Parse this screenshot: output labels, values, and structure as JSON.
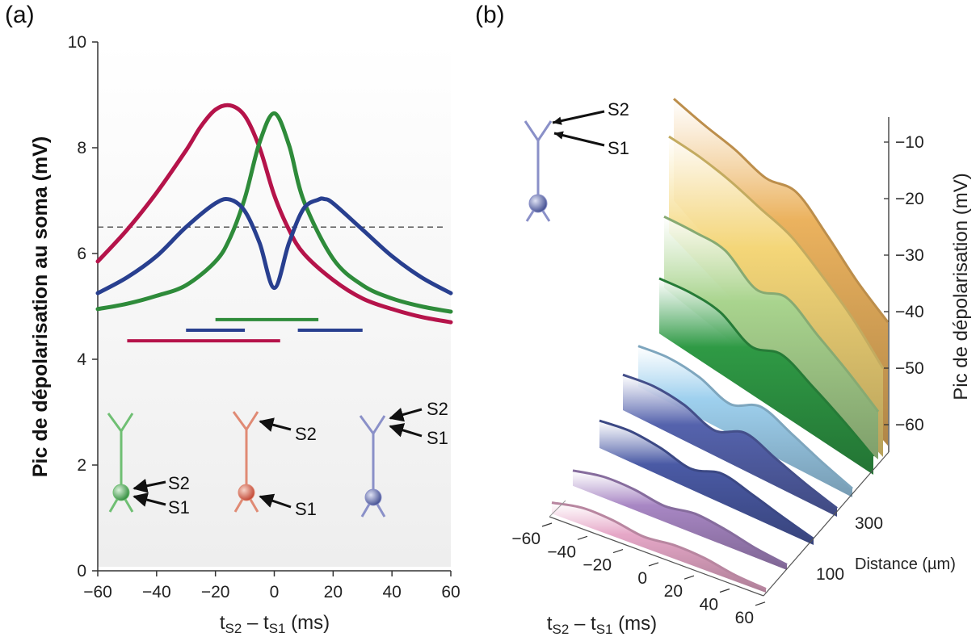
{
  "panel_a_label": "(a)",
  "panel_b_label": "(b)",
  "colors": {
    "red": "#b5134a",
    "green": "#2e8b3a",
    "blue": "#283f8f",
    "dashed": "#555555"
  },
  "chart_data": [
    {
      "type": "line",
      "panel": "(a)",
      "ylabel": "Pic de dépolarisation au soma (mV)",
      "xlabel_parts": [
        "t",
        "S2",
        " – t",
        "S1",
        " (ms)"
      ],
      "xlim": [
        -60,
        60
      ],
      "ylim": [
        0,
        10
      ],
      "xticks": [
        -60,
        -40,
        -20,
        0,
        20,
        40,
        60
      ],
      "xtick_labels": [
        "−60",
        "−40",
        "−20",
        "0",
        "20",
        "40",
        "60"
      ],
      "yticks": [
        0,
        2,
        4,
        6,
        8,
        10
      ],
      "ytick_labels": [
        "0",
        "2",
        "4",
        "6",
        "8",
        "10"
      ],
      "threshold": 6.5,
      "series": [
        {
          "key": "red",
          "x": [
            -60,
            -50,
            -40,
            -30,
            -25,
            -20,
            -15,
            -10,
            -5,
            0,
            5,
            10,
            20,
            30,
            40,
            50,
            60
          ],
          "y": [
            5.85,
            6.45,
            7.15,
            7.95,
            8.4,
            8.72,
            8.8,
            8.6,
            8.0,
            7.1,
            6.45,
            6.0,
            5.5,
            5.15,
            4.95,
            4.8,
            4.7
          ]
        },
        {
          "key": "green",
          "x": [
            -60,
            -50,
            -40,
            -30,
            -20,
            -15,
            -10,
            -5,
            0,
            5,
            10,
            20,
            30,
            40,
            50,
            60
          ],
          "y": [
            4.95,
            5.05,
            5.2,
            5.4,
            5.85,
            6.3,
            7.05,
            8.1,
            8.65,
            8.05,
            7.0,
            5.9,
            5.4,
            5.15,
            5.0,
            4.9
          ]
        },
        {
          "key": "blue",
          "x": [
            -60,
            -50,
            -40,
            -30,
            -20,
            -15,
            -10,
            -5,
            0,
            5,
            10,
            15,
            17,
            20,
            30,
            40,
            50,
            60
          ],
          "y": [
            5.25,
            5.55,
            5.95,
            6.5,
            6.95,
            7.02,
            6.8,
            6.2,
            5.35,
            6.2,
            6.85,
            7.02,
            7.03,
            6.95,
            6.45,
            5.95,
            5.55,
            5.25
          ]
        }
      ],
      "window_bars": [
        {
          "key": "green",
          "x0": -20,
          "x1": 15,
          "y": 4.75
        },
        {
          "key": "blue",
          "x0": -30,
          "x1": -10,
          "y": 4.55
        },
        {
          "key": "blue",
          "x0": 8,
          "x1": 30,
          "y": 4.55
        },
        {
          "key": "red",
          "x0": -50,
          "x1": 2,
          "y": 4.35
        }
      ],
      "neurons": [
        {
          "key": "green",
          "labels": [
            "S2",
            "S1"
          ]
        },
        {
          "key": "red",
          "labels": [
            "S2",
            "S1"
          ]
        },
        {
          "key": "blue",
          "labels": [
            "S2",
            "S1"
          ]
        }
      ]
    },
    {
      "type": "area",
      "panel": "(b)",
      "ylabel": "Pic de dépolarisation (mV)",
      "xlabel_parts": [
        "t",
        "S2",
        " – t",
        "S1",
        " (ms)"
      ],
      "zlabel": "Distance (µm)",
      "xtick_labels": [
        "−60",
        "−40",
        "−20",
        "0",
        "20",
        "40",
        "60"
      ],
      "ytick_labels": [
        "−10",
        "−20",
        "−30",
        "−40",
        "−50",
        "−60"
      ],
      "ztick_labels": [
        "100",
        "300"
      ],
      "slice_colors": [
        "#e6a8c8",
        "#a887c4",
        "#4a5aa5",
        "#5563ad",
        "#9ed0ee",
        "#2f9a45",
        "#a9d48e",
        "#f4d678",
        "#ebb25e"
      ],
      "neuron_labels": [
        "S2",
        "S1"
      ]
    }
  ]
}
